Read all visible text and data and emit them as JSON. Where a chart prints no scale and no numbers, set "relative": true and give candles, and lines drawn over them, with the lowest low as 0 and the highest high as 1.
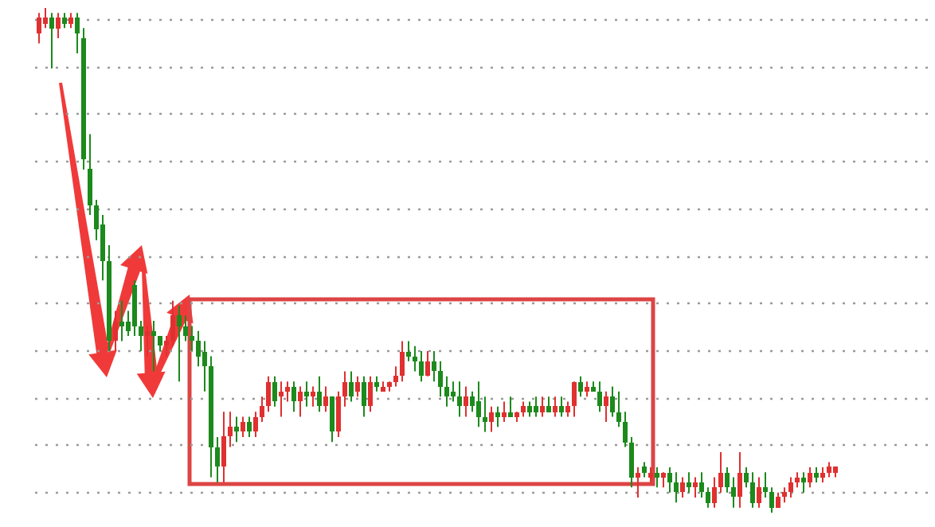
{
  "chart_data": {
    "type": "candlestick",
    "relative": true,
    "grid": "y",
    "categories": [
      null,
      null,
      null,
      null,
      null,
      null,
      null,
      null,
      null,
      null,
      null,
      null,
      null,
      null,
      null,
      null,
      null,
      null,
      null,
      null,
      null,
      null,
      null,
      null,
      null,
      null,
      null,
      null,
      null,
      null,
      null,
      null,
      null,
      null,
      null,
      null,
      null,
      null,
      null,
      null,
      null,
      null,
      null,
      null,
      null,
      null,
      null,
      null,
      null,
      null,
      null,
      null,
      null,
      null,
      null,
      null,
      null,
      null,
      null,
      null,
      null,
      null,
      null,
      null,
      null,
      null,
      null,
      null,
      null,
      null,
      null,
      null,
      null,
      null,
      null,
      null,
      null,
      null,
      null,
      null,
      null,
      null,
      null,
      null,
      null,
      null,
      null,
      null,
      null,
      null,
      null,
      null,
      null,
      null,
      null,
      null,
      null,
      null,
      null,
      null,
      null,
      null,
      null,
      null,
      null,
      null,
      null,
      null,
      null,
      null,
      null,
      null,
      null,
      null,
      null,
      null,
      null,
      null,
      null,
      null,
      null,
      null,
      null,
      null,
      null,
      null
    ],
    "ohlc": [
      [
        0.95,
        0.99,
        0.93,
        0.98
      ],
      [
        0.97,
        1,
        0.96,
        0.98
      ],
      [
        0.98,
        0.99,
        0.88,
        0.96
      ],
      [
        0.96,
        0.99,
        0.94,
        0.98
      ],
      [
        0.98,
        0.99,
        0.96,
        0.97
      ],
      [
        0.97,
        0.99,
        0.96,
        0.98
      ],
      [
        0.98,
        0.99,
        0.91,
        0.95
      ],
      [
        0.94,
        0.96,
        0.68,
        0.7
      ],
      [
        0.68,
        0.75,
        0.59,
        0.61
      ],
      [
        0.61,
        0.62,
        0.54,
        0.56
      ],
      [
        0.57,
        0.59,
        0.46,
        0.5
      ],
      [
        0.5,
        0.53,
        0.32,
        0.34
      ],
      [
        0.34,
        0.4,
        0.32,
        0.38
      ],
      [
        0.38,
        0.42,
        0.34,
        0.37
      ],
      [
        0.38,
        0.4,
        0.35,
        0.36
      ],
      [
        0.45,
        0.46,
        0.35,
        0.37
      ],
      [
        0.37,
        0.38,
        0.32,
        0.35
      ],
      [
        0.35,
        0.37,
        0.31,
        0.36
      ],
      [
        0.36,
        0.38,
        0.28,
        0.35
      ],
      [
        0.35,
        0.35,
        0.32,
        0.33
      ],
      [
        0.33,
        0.35,
        0.31,
        0.34
      ],
      [
        0.34,
        0.42,
        0.33,
        0.39
      ],
      [
        0.39,
        0.41,
        0.26,
        0.37
      ],
      [
        0.37,
        0.39,
        0.34,
        0.35
      ],
      [
        0.35,
        0.37,
        0.32,
        0.34
      ],
      [
        0.34,
        0.36,
        0.29,
        0.31
      ],
      [
        0.32,
        0.34,
        0.24,
        0.29
      ],
      [
        0.29,
        0.31,
        0.07,
        0.13
      ],
      [
        0.13,
        0.15,
        0.06,
        0.09
      ],
      [
        0.09,
        0.2,
        0.06,
        0.15
      ],
      [
        0.15,
        0.2,
        0.13,
        0.17
      ],
      [
        0.17,
        0.19,
        0.14,
        0.16
      ],
      [
        0.16,
        0.19,
        0.15,
        0.18
      ],
      [
        0.18,
        0.19,
        0.15,
        0.16
      ],
      [
        0.16,
        0.2,
        0.15,
        0.19
      ],
      [
        0.19,
        0.23,
        0.18,
        0.21
      ],
      [
        0.21,
        0.27,
        0.2,
        0.26
      ],
      [
        0.26,
        0.27,
        0.21,
        0.22
      ],
      [
        0.23,
        0.26,
        0.19,
        0.24
      ],
      [
        0.24,
        0.26,
        0.22,
        0.25
      ],
      [
        0.25,
        0.26,
        0.2,
        0.22
      ],
      [
        0.22,
        0.25,
        0.19,
        0.24
      ],
      [
        0.24,
        0.26,
        0.21,
        0.23
      ],
      [
        0.23,
        0.25,
        0.21,
        0.24
      ],
      [
        0.24,
        0.27,
        0.2,
        0.21
      ],
      [
        0.21,
        0.25,
        0.2,
        0.23
      ],
      [
        0.23,
        0.23,
        0.14,
        0.16
      ],
      [
        0.16,
        0.24,
        0.15,
        0.23
      ],
      [
        0.23,
        0.28,
        0.21,
        0.26
      ],
      [
        0.26,
        0.28,
        0.22,
        0.23
      ],
      [
        0.24,
        0.27,
        0.23,
        0.26
      ],
      [
        0.26,
        0.27,
        0.19,
        0.21
      ],
      [
        0.21,
        0.27,
        0.2,
        0.26
      ],
      [
        0.26,
        0.27,
        0.24,
        0.25
      ],
      [
        0.24,
        0.26,
        0.24,
        0.25
      ],
      [
        0.25,
        0.26,
        0.24,
        0.26
      ],
      [
        0.26,
        0.29,
        0.25,
        0.27
      ],
      [
        0.27,
        0.34,
        0.26,
        0.32
      ],
      [
        0.32,
        0.34,
        0.3,
        0.31
      ],
      [
        0.31,
        0.33,
        0.28,
        0.3
      ],
      [
        0.3,
        0.32,
        0.26,
        0.27
      ],
      [
        0.27,
        0.32,
        0.27,
        0.3
      ],
      [
        0.3,
        0.32,
        0.26,
        0.28
      ],
      [
        0.28,
        0.3,
        0.23,
        0.25
      ],
      [
        0.25,
        0.27,
        0.21,
        0.23
      ],
      [
        0.24,
        0.26,
        0.22,
        0.23
      ],
      [
        0.23,
        0.26,
        0.19,
        0.21
      ],
      [
        0.21,
        0.25,
        0.19,
        0.23
      ],
      [
        0.23,
        0.24,
        0.2,
        0.21
      ],
      [
        0.22,
        0.26,
        0.17,
        0.19
      ],
      [
        0.19,
        0.23,
        0.16,
        0.18
      ],
      [
        0.18,
        0.21,
        0.16,
        0.2
      ],
      [
        0.2,
        0.21,
        0.17,
        0.19
      ],
      [
        0.19,
        0.22,
        0.18,
        0.2
      ],
      [
        0.2,
        0.23,
        0.19,
        0.19
      ],
      [
        0.19,
        0.2,
        0.18,
        0.2
      ],
      [
        0.2,
        0.22,
        0.19,
        0.21
      ],
      [
        0.21,
        0.22,
        0.19,
        0.2
      ],
      [
        0.21,
        0.23,
        0.19,
        0.2
      ],
      [
        0.2,
        0.23,
        0.19,
        0.21
      ],
      [
        0.21,
        0.23,
        0.2,
        0.2
      ],
      [
        0.2,
        0.23,
        0.19,
        0.21
      ],
      [
        0.21,
        0.23,
        0.19,
        0.2
      ],
      [
        0.2,
        0.22,
        0.19,
        0.21
      ],
      [
        0.21,
        0.26,
        0.19,
        0.26
      ],
      [
        0.26,
        0.27,
        0.23,
        0.24
      ],
      [
        0.24,
        0.26,
        0.23,
        0.25
      ],
      [
        0.25,
        0.26,
        0.24,
        0.24
      ],
      [
        0.24,
        0.26,
        0.2,
        0.21
      ],
      [
        0.21,
        0.24,
        0.18,
        0.23
      ],
      [
        0.23,
        0.25,
        0.19,
        0.2
      ],
      [
        0.2,
        0.24,
        0.17,
        0.18
      ],
      [
        0.18,
        0.2,
        0.13,
        0.14
      ],
      [
        0.14,
        0.15,
        0.05,
        0.07
      ],
      [
        0.07,
        0.09,
        0.03,
        0.08
      ],
      [
        0.09,
        0.1,
        0.07,
        0.08
      ],
      [
        0.07,
        0.09,
        0.06,
        0.08
      ],
      [
        0.08,
        0.09,
        0.05,
        0.07
      ],
      [
        0.07,
        0.08,
        0.05,
        0.08
      ],
      [
        0.08,
        0.09,
        0.04,
        0.06
      ],
      [
        0.06,
        0.08,
        0.02,
        0.04
      ],
      [
        0.04,
        0.07,
        0.03,
        0.06
      ],
      [
        0.06,
        0.08,
        0.04,
        0.05
      ],
      [
        0.05,
        0.07,
        0.03,
        0.06
      ],
      [
        0.06,
        0.08,
        0.03,
        0.04
      ],
      [
        0.04,
        0.05,
        0.01,
        0.02
      ],
      [
        0.02,
        0.07,
        0.01,
        0.05
      ],
      [
        0.05,
        0.12,
        0.04,
        0.08
      ],
      [
        0.08,
        0.09,
        0.04,
        0.05
      ],
      [
        0.05,
        0.07,
        0.01,
        0.03
      ],
      [
        0.03,
        0.12,
        0.01,
        0.08
      ],
      [
        0.08,
        0.09,
        0.05,
        0.06
      ],
      [
        0.06,
        0.08,
        0.01,
        0.02
      ],
      [
        0.02,
        0.07,
        0.01,
        0.05
      ],
      [
        0.05,
        0.08,
        0.03,
        0.04
      ],
      [
        0.04,
        0.05,
        0,
        0.01
      ],
      [
        0.01,
        0.04,
        0.01,
        0.03
      ],
      [
        0.03,
        0.05,
        0.02,
        0.04
      ],
      [
        0.04,
        0.07,
        0.03,
        0.06
      ],
      [
        0.06,
        0.08,
        0.05,
        0.07
      ],
      [
        0.07,
        0.08,
        0.04,
        0.06
      ],
      [
        0.06,
        0.09,
        0.05,
        0.08
      ],
      [
        0.08,
        0.09,
        0.06,
        0.07
      ],
      [
        0.07,
        0.09,
        0.06,
        0.08
      ],
      [
        0.08,
        0.1,
        0.07,
        0.09
      ],
      [
        0.08,
        0.09,
        0.07,
        0.09
      ]
    ]
  }
}
